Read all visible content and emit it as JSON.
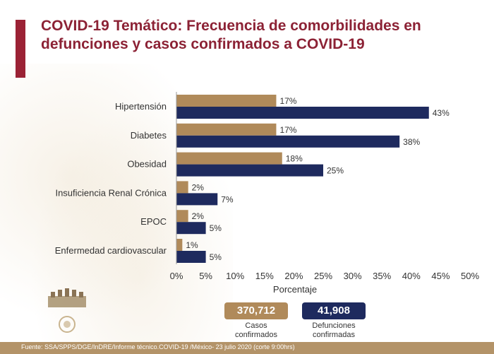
{
  "header": {
    "title_line1": "COVID-19 Temático: Frecuencia de comorbilidades en",
    "title_line2": "defunciones y casos confirmados a COVID-19"
  },
  "colors": {
    "casos": "#b08a5a",
    "defunciones": "#1e2a5e",
    "accent": "#9b2235",
    "title": "#8c2235",
    "footer": "#b39368"
  },
  "chart_data": {
    "type": "bar",
    "orientation": "horizontal",
    "categories": [
      "Hipertensión",
      "Diabetes",
      "Obesidad",
      "Insuficiencia Renal Crónica",
      "EPOC",
      "Enfermedad cardiovascular"
    ],
    "series": [
      {
        "name": "Casos confirmados",
        "values": [
          17,
          17,
          18,
          2,
          2,
          1
        ]
      },
      {
        "name": "Defunciones confirmadas",
        "values": [
          43,
          38,
          25,
          7,
          5,
          5
        ]
      }
    ],
    "value_labels": [
      [
        "17%",
        "17%",
        "18%",
        "2%",
        "2%",
        "1%"
      ],
      [
        "43%",
        "38%",
        "25%",
        "7%",
        "5%",
        "5%"
      ]
    ],
    "xlabel": "Porcentaje",
    "xlim": [
      0,
      50
    ],
    "xticks": [
      0,
      5,
      10,
      15,
      20,
      25,
      30,
      35,
      40,
      45,
      50
    ],
    "xtick_labels": [
      "0%",
      "5%",
      "10%",
      "15%",
      "20%",
      "25%",
      "30%",
      "35%",
      "40%",
      "45%",
      "50%"
    ],
    "grid": false,
    "legend_position": "bottom"
  },
  "legend": {
    "casos_value": "370,712",
    "casos_caption_line1": "Casos",
    "casos_caption_line2": "confirmados",
    "defunciones_value": "41,908",
    "defunciones_caption_line1": "Defunciones",
    "defunciones_caption_line2": "confirmadas"
  },
  "footer": {
    "source": "Fuente: SSA/SPPS/DGE/InDRE/Informe técnico.COVID-19 /México- 23 julio 2020 (corte 9:00hrs)"
  },
  "logo": {
    "icon": "government-seal-icon"
  }
}
